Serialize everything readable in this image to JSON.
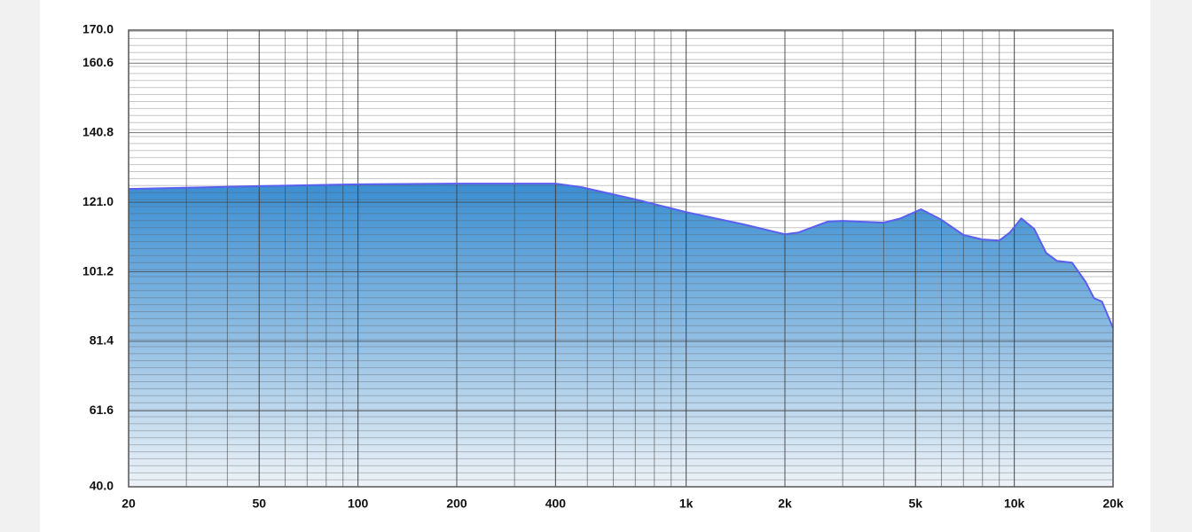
{
  "chart_data": {
    "type": "area",
    "x_scale": "log",
    "grid": true,
    "xlim": [
      20,
      20000
    ],
    "ylim": [
      40,
      170
    ],
    "xticks": [
      20,
      50,
      100,
      200,
      400,
      {
        "value": 1000,
        "label": "1k"
      },
      {
        "value": 2000,
        "label": "2k"
      },
      {
        "value": 5000,
        "label": "5k"
      },
      {
        "value": 10000,
        "label": "10k"
      },
      {
        "value": 20000,
        "label": "20k"
      }
    ],
    "yticks": [
      {
        "value": 40,
        "label": "40.0"
      },
      61.6,
      81.4,
      101.2,
      {
        "value": 121,
        "label": "121.0"
      },
      140.8,
      160.6,
      {
        "value": 170,
        "label": "170.0"
      }
    ],
    "x": [
      20,
      50,
      100,
      200,
      400,
      480,
      700,
      1000,
      1500,
      2000,
      2200,
      2700,
      3000,
      4000,
      4500,
      5200,
      6000,
      7000,
      8000,
      9000,
      9700,
      10500,
      11500,
      12500,
      13500,
      15000,
      16500,
      17500,
      18500,
      20000
    ],
    "series": [
      {
        "color": "#5b5ff0",
        "values": [
          124.8,
          125.6,
          126.1,
          126.3,
          126.3,
          125.3,
          121.8,
          118.2,
          114.7,
          111.9,
          112.4,
          115.5,
          115.7,
          115.2,
          116.4,
          119.0,
          116.0,
          111.7,
          110.4,
          110.1,
          112.4,
          116.4,
          113.4,
          106.6,
          104.3,
          103.8,
          98.3,
          93.7,
          92.7,
          85.2
        ]
      }
    ]
  }
}
